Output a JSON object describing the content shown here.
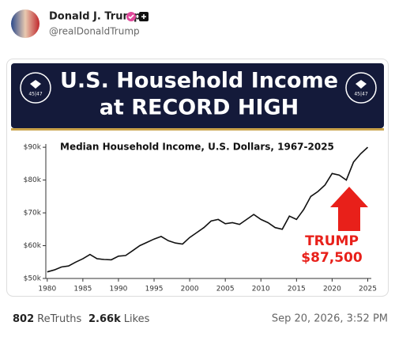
{
  "post": {
    "author": "Donald J. Trump",
    "handle": "@realDonaldTrump",
    "banner": {
      "line1": "U.S. Household Income",
      "line2": "at RECORD HIGH",
      "seal": "45|47"
    },
    "stats": {
      "retruths": "802",
      "retruths_label": "ReTruths",
      "likes": "2.66k",
      "likes_label": "Likes"
    },
    "timestamp": "Sep 20, 2026, 3:52 PM"
  },
  "chart_data": {
    "type": "line",
    "title": "Median Household Income, U.S. Dollars, 1967-2025",
    "x": [
      1980,
      1981,
      1982,
      1983,
      1984,
      1985,
      1986,
      1987,
      1988,
      1989,
      1990,
      1991,
      1992,
      1993,
      1994,
      1995,
      1996,
      1997,
      1998,
      1999,
      2000,
      2001,
      2002,
      2003,
      2004,
      2005,
      2006,
      2007,
      2008,
      2009,
      2010,
      2011,
      2012,
      2013,
      2014,
      2015,
      2016,
      2017,
      2018,
      2019,
      2020,
      2021,
      2022,
      2023,
      2024,
      2025
    ],
    "series": [
      {
        "name": "Median Household Income",
        "color": "#111111",
        "values": [
          52000,
          52600,
          53500,
          53800,
          55000,
          56000,
          57300,
          56000,
          55800,
          55700,
          56800,
          57000,
          58500,
          60000,
          61000,
          62000,
          62800,
          61500,
          60800,
          60500,
          62500,
          64000,
          65500,
          67500,
          68000,
          66700,
          67000,
          66500,
          68000,
          69500,
          68000,
          67000,
          65500,
          65000,
          69000,
          68000,
          71000,
          75000,
          76500,
          78500,
          82000,
          81500,
          80000,
          85500,
          88000,
          90000
        ]
      }
    ],
    "xlim": [
      1979.8,
      2025.5
    ],
    "xticks": [
      1980,
      1985,
      1990,
      1995,
      2000,
      2005,
      2010,
      2015,
      2020,
      2025
    ],
    "ylim": [
      50000,
      91000
    ],
    "yticks": [
      {
        "value": 50000,
        "label": "$50k"
      },
      {
        "value": 60000,
        "label": "$60k"
      },
      {
        "value": 70000,
        "label": "$70k"
      },
      {
        "value": 80000,
        "label": "$80k"
      },
      {
        "value": 90000,
        "label": "$90k"
      }
    ],
    "annotation": {
      "line1": "TRUMP",
      "line2": "$87,500",
      "color": "#e8201a"
    }
  }
}
